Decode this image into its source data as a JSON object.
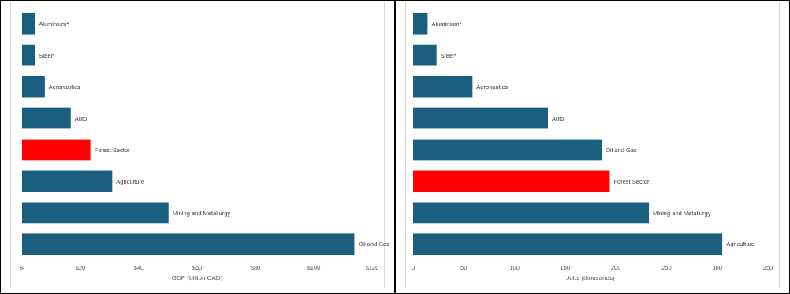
{
  "chart_data": [
    {
      "type": "bar",
      "orientation": "horizontal",
      "categories": [
        "Aluminium*",
        "Steel*",
        "Aeronautics",
        "Auto",
        "Forest Sector",
        "Agriculture",
        "Mining and Metallurgy",
        "Oil and Gas"
      ],
      "values": [
        4.4,
        4.4,
        7.8,
        16.7,
        23.4,
        30.9,
        50.2,
        113.9
      ],
      "colors": [
        "#1a5e80",
        "#1a5e80",
        "#1a5e80",
        "#1a5e80",
        "#ff0000",
        "#1a5e80",
        "#1a5e80",
        "#1a5e80"
      ],
      "xlabel": "GDP (billion CAD)",
      "xlim": [
        0,
        120
      ],
      "xticks": [
        {
          "value": 0,
          "label": "$-"
        },
        {
          "value": 20,
          "label": "$20"
        },
        {
          "value": 40,
          "label": "$40"
        },
        {
          "value": 60,
          "label": "$60"
        },
        {
          "value": 80,
          "label": "$80"
        },
        {
          "value": 100,
          "label": "$100"
        },
        {
          "value": 120,
          "label": "$120"
        }
      ],
      "grid": false
    },
    {
      "type": "bar",
      "orientation": "horizontal",
      "categories": [
        "Aluminium*",
        "Steel*",
        "Aeronautics",
        "Auto",
        "Oil and Gas",
        "Forest Sector",
        "Mining and Metallurgy",
        "Agriculture"
      ],
      "values": [
        14.3,
        23.1,
        58.6,
        133,
        186,
        194,
        232.6,
        305
      ],
      "colors": [
        "#1a5e80",
        "#1a5e80",
        "#1a5e80",
        "#1a5e80",
        "#1a5e80",
        "#ff0000",
        "#1a5e80",
        "#1a5e80"
      ],
      "xlabel": "Jobs (thousands)",
      "xlim": [
        0,
        350
      ],
      "xticks": [
        0,
        50,
        100,
        150,
        200,
        250,
        300,
        350
      ],
      "grid": false
    }
  ]
}
